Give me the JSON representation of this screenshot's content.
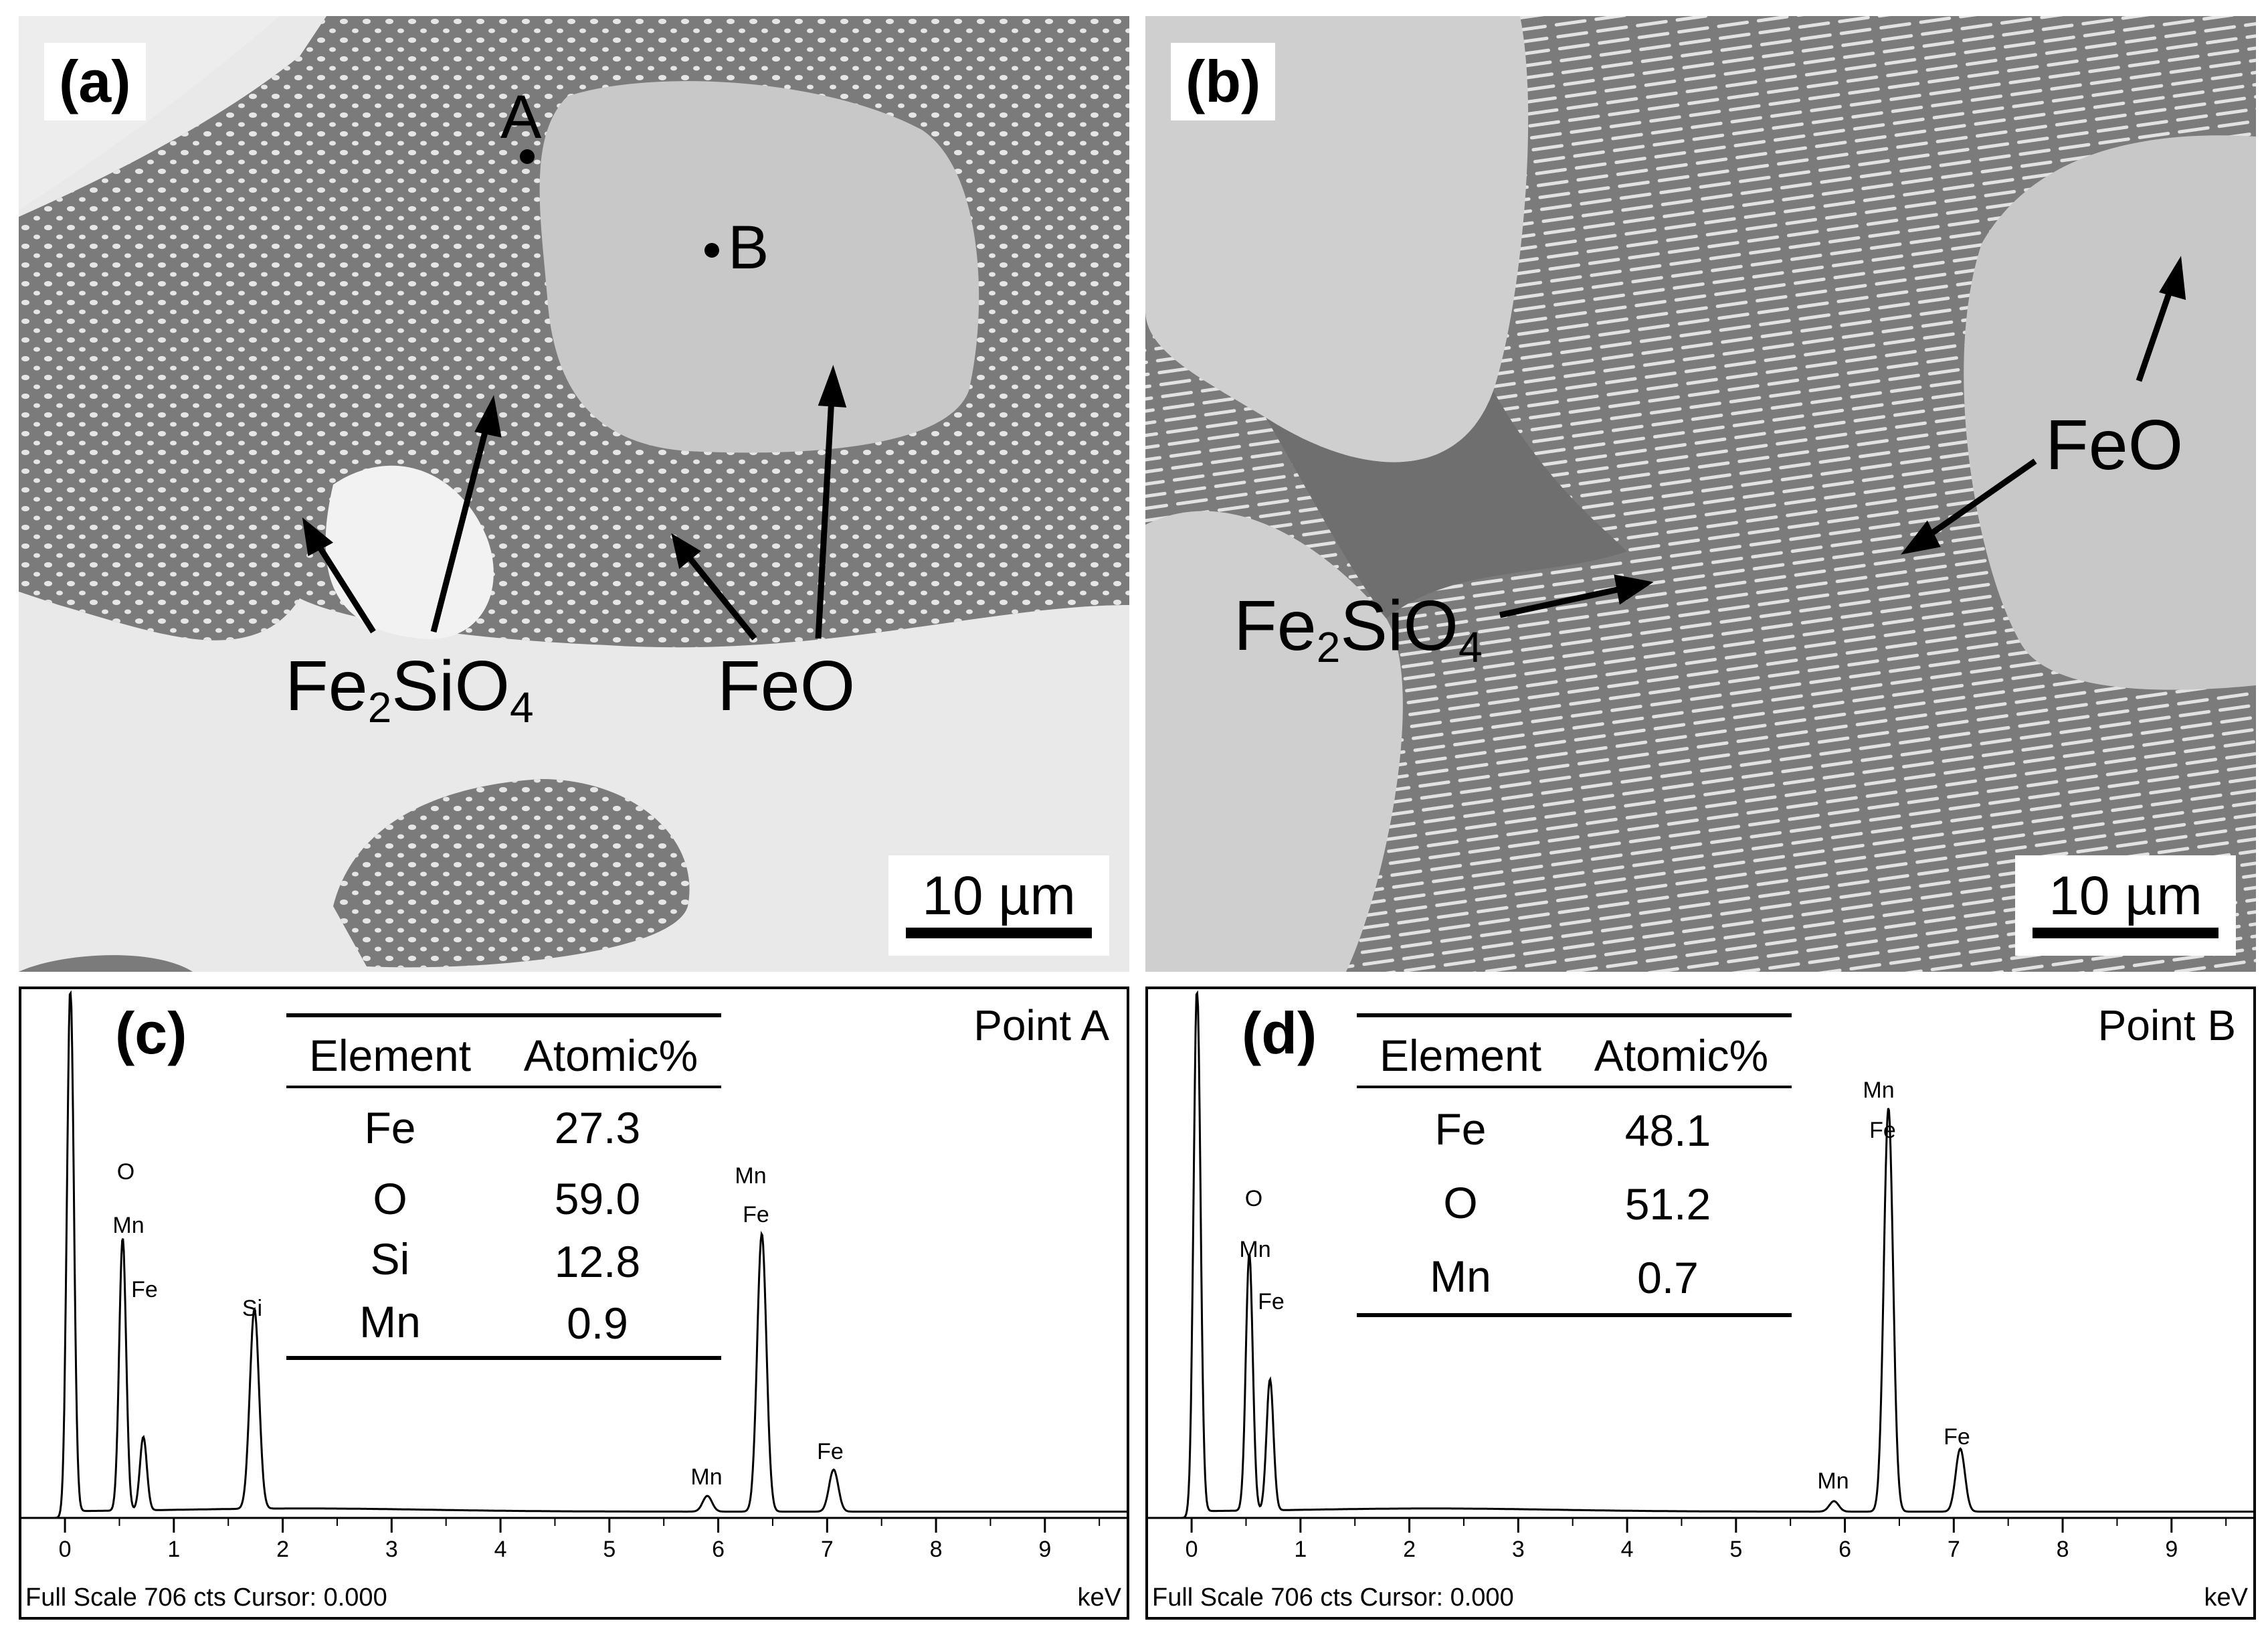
{
  "figure": {
    "panel_a": {
      "label": "(a)",
      "points": [
        "A",
        "B"
      ],
      "annotations": {
        "fe2sio4_base": "Fe",
        "fe2sio4_sub1": "2",
        "fe2sio4_mid": "SiO",
        "fe2sio4_sub2": "4",
        "feo": "FeO"
      },
      "scale": "10 µm"
    },
    "panel_b": {
      "label": "(b)",
      "annotations": {
        "fe2sio4_base": "Fe",
        "fe2sio4_sub1": "2",
        "fe2sio4_mid": "SiO",
        "fe2sio4_sub2": "4",
        "feo": "FeO"
      },
      "scale": "10 µm"
    },
    "panel_c": {
      "label": "(c)",
      "point": "Point A",
      "table": {
        "headers": [
          "Element",
          "Atomic%"
        ],
        "rows": [
          [
            "Fe",
            "27.3"
          ],
          [
            "O",
            "59.0"
          ],
          [
            "Si",
            "12.8"
          ],
          [
            "Mn",
            "0.9"
          ]
        ]
      },
      "peak_labels": {
        "o": "O",
        "mn1": "Mn",
        "fe1": "Fe",
        "si": "Si",
        "mn2": "Mn",
        "fe2": "Fe",
        "mn3": "Mn",
        "fe3": "Fe"
      },
      "footer": "Full Scale 706 cts Cursor: 0.000",
      "unit": "keV"
    },
    "panel_d": {
      "label": "(d)",
      "point": "Point B",
      "table": {
        "headers": [
          "Element",
          "Atomic%"
        ],
        "rows": [
          [
            "Fe",
            "48.1"
          ],
          [
            "O",
            "51.2"
          ],
          [
            "Mn",
            "0.7"
          ]
        ]
      },
      "peak_labels": {
        "o": "O",
        "mn1": "Mn",
        "fe1": "Fe",
        "mn2": "Mn",
        "fe2": "Fe",
        "mn3": "Mn",
        "fe3": "Fe"
      },
      "footer": "Full Scale 706 cts Cursor: 0.000",
      "unit": "keV"
    }
  },
  "chart_data": [
    {
      "type": "line",
      "point": "Point A",
      "xlabel": "keV",
      "xlim": [
        -0.4,
        9.8
      ],
      "xticks": [
        0,
        1,
        2,
        3,
        4,
        5,
        6,
        7,
        8,
        9
      ],
      "full_scale_cts": 706,
      "peaks": [
        {
          "x": 0.05,
          "label": "",
          "height": 1.0
        },
        {
          "x": 0.53,
          "label": "O, Mn, Fe",
          "height": 0.52
        },
        {
          "x": 0.72,
          "label": "",
          "height": 0.14
        },
        {
          "x": 1.74,
          "label": "Si",
          "height": 0.38
        },
        {
          "x": 5.9,
          "label": "Mn",
          "height": 0.03
        },
        {
          "x": 6.4,
          "label": "Fe, Mn",
          "height": 0.53
        },
        {
          "x": 7.06,
          "label": "Fe",
          "height": 0.08
        }
      ],
      "table": {
        "Fe": 27.3,
        "O": 59.0,
        "Si": 12.8,
        "Mn": 0.9
      }
    },
    {
      "type": "line",
      "point": "Point B",
      "xlabel": "keV",
      "xlim": [
        -0.4,
        9.8
      ],
      "xticks": [
        0,
        1,
        2,
        3,
        4,
        5,
        6,
        7,
        8,
        9
      ],
      "full_scale_cts": 706,
      "peaks": [
        {
          "x": 0.05,
          "label": "",
          "height": 1.0
        },
        {
          "x": 0.53,
          "label": "O, Mn, Fe",
          "height": 0.49
        },
        {
          "x": 0.72,
          "label": "",
          "height": 0.25
        },
        {
          "x": 5.9,
          "label": "Mn",
          "height": 0.02
        },
        {
          "x": 6.4,
          "label": "Fe, Mn",
          "height": 0.77
        },
        {
          "x": 7.06,
          "label": "Fe",
          "height": 0.12
        }
      ],
      "table": {
        "Fe": 48.1,
        "O": 51.2,
        "Mn": 0.7
      }
    }
  ]
}
